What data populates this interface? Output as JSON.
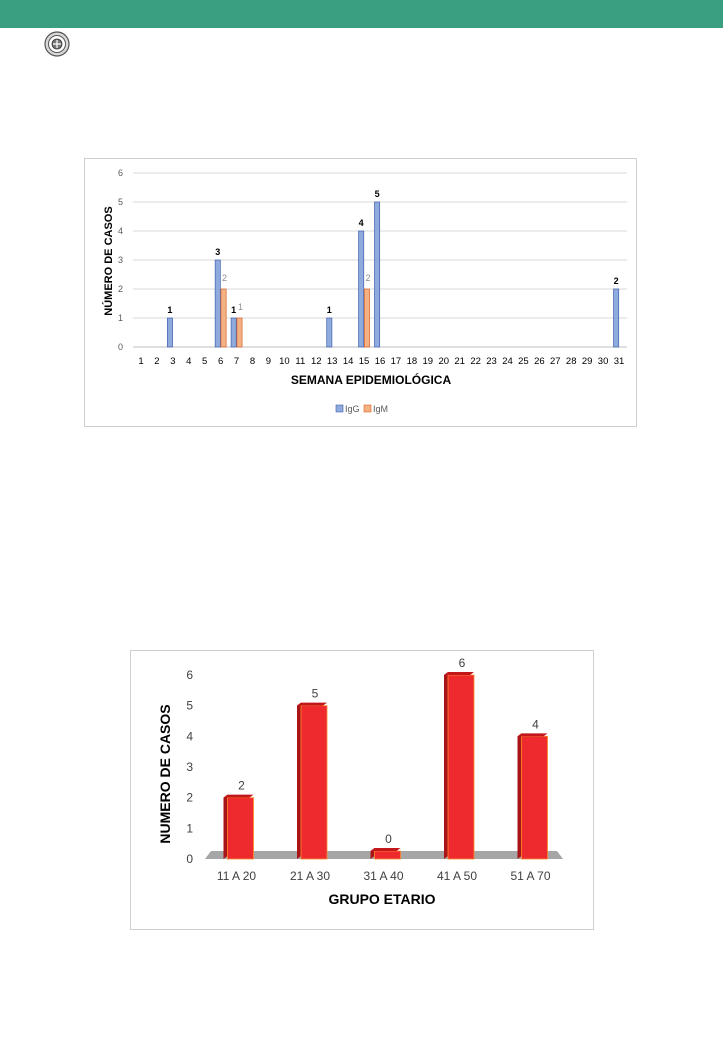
{
  "colors": {
    "header": "#3a9e80",
    "igg": "#8faadc",
    "igg_stroke": "#3f5fae",
    "igm": "#f4b183",
    "igm_stroke": "#d9622a",
    "bar_red": "#ee2a2f",
    "bar_red_dark": "#a81418",
    "bar_red_top": "#c2181c",
    "floor": "#a6a6a6"
  },
  "header": {
    "logo_icon": "institution-seal-icon"
  },
  "chart_data": [
    {
      "type": "bar",
      "xlabel": "SEMANA EPIDEMIOLÓGICA",
      "ylabel": "NÚMERO DE CASOS",
      "ylim": [
        0,
        6
      ],
      "yticks": [
        "0",
        "1",
        "2",
        "3",
        "4",
        "5",
        "6"
      ],
      "grid": true,
      "legend_position": "bottom",
      "categories": [
        "1",
        "2",
        "3",
        "4",
        "5",
        "6",
        "7",
        "8",
        "9",
        "10",
        "11",
        "12",
        "13",
        "14",
        "15",
        "16",
        "17",
        "18",
        "19",
        "20",
        "21",
        "22",
        "23",
        "24",
        "25",
        "26",
        "27",
        "28",
        "29",
        "30",
        "31"
      ],
      "series": [
        {
          "name": "IgG",
          "values": [
            0,
            0,
            1,
            0,
            0,
            3,
            1,
            0,
            0,
            0,
            0,
            0,
            1,
            0,
            4,
            5,
            0,
            0,
            0,
            0,
            0,
            0,
            0,
            0,
            0,
            0,
            0,
            0,
            0,
            0,
            2
          ]
        },
        {
          "name": "IgM",
          "values": [
            0,
            0,
            0,
            0,
            0,
            2,
            1,
            0,
            0,
            0,
            0,
            0,
            0,
            0,
            2,
            0,
            0,
            0,
            0,
            0,
            0,
            0,
            0,
            0,
            0,
            0,
            0,
            0,
            0,
            0,
            0
          ]
        }
      ],
      "data_labels": [
        {
          "series": 0,
          "category": "3",
          "text": "1"
        },
        {
          "series": 0,
          "category": "6",
          "text": "3"
        },
        {
          "series": 1,
          "category": "6",
          "text": "2"
        },
        {
          "series": 0,
          "category": "7",
          "text": "1"
        },
        {
          "series": 1,
          "category": "7",
          "text": "1"
        },
        {
          "series": 0,
          "category": "13",
          "text": "1"
        },
        {
          "series": 0,
          "category": "15",
          "text": "4"
        },
        {
          "series": 1,
          "category": "15",
          "text": "2"
        },
        {
          "series": 0,
          "category": "16",
          "text": "5"
        },
        {
          "series": 0,
          "category": "31",
          "text": "2"
        }
      ]
    },
    {
      "type": "bar",
      "xlabel": "GRUPO ETARIO",
      "ylabel": "NUMERO DE CASOS",
      "ylim": [
        0,
        6
      ],
      "yticks": [
        "0",
        "1",
        "2",
        "3",
        "4",
        "5",
        "6"
      ],
      "grid": false,
      "categories": [
        "11 A 20",
        "21 A 30",
        "31 A 40",
        "41 A 50",
        "51 A 70"
      ],
      "values": [
        2,
        5,
        0,
        6,
        4
      ],
      "data_labels": [
        "2",
        "5",
        "0",
        "6",
        "4"
      ]
    }
  ]
}
